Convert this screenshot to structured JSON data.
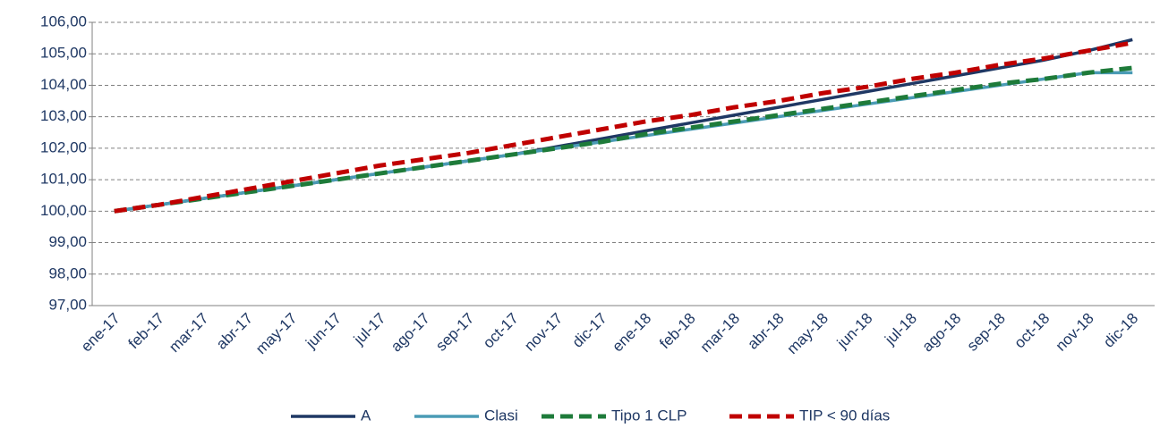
{
  "chart_data": {
    "type": "line",
    "categories": [
      "ene-17",
      "feb-17",
      "mar-17",
      "abr-17",
      "may-17",
      "jun-17",
      "jul-17",
      "ago-17",
      "sep-17",
      "oct-17",
      "nov-17",
      "dic-17",
      "ene-18",
      "feb-18",
      "mar-18",
      "abr-18",
      "may-18",
      "jun-18",
      "jul-18",
      "ago-18",
      "sep-18",
      "oct-18",
      "nov-18",
      "dic-18"
    ],
    "series": [
      {
        "name": "A",
        "color": "#1f3864",
        "dash": false,
        "values": [
          100,
          100.2,
          100.4,
          100.6,
          100.8,
          101.0,
          101.2,
          101.4,
          101.6,
          101.8,
          102.05,
          102.3,
          102.55,
          102.8,
          103.05,
          103.3,
          103.55,
          103.8,
          104.05,
          104.3,
          104.55,
          104.8,
          105.1,
          105.45
        ]
      },
      {
        "name": "Clasi",
        "color": "#4a9bb5",
        "dash": false,
        "values": [
          100,
          100.2,
          100.4,
          100.6,
          100.8,
          101.0,
          101.2,
          101.4,
          101.6,
          101.8,
          102.0,
          102.2,
          102.4,
          102.6,
          102.8,
          103.0,
          103.2,
          103.4,
          103.6,
          103.8,
          104.0,
          104.2,
          104.4,
          104.4
        ]
      },
      {
        "name": "Tipo 1 CLP",
        "color": "#1e7b3a",
        "dash": true,
        "values": [
          100,
          100.2,
          100.4,
          100.6,
          100.8,
          101.0,
          101.2,
          101.4,
          101.6,
          101.8,
          102.0,
          102.2,
          102.45,
          102.65,
          102.85,
          103.05,
          103.25,
          103.45,
          103.65,
          103.85,
          104.05,
          104.2,
          104.4,
          104.55
        ]
      },
      {
        "name": "TIP < 90 días",
        "color": "#c00000",
        "dash": true,
        "values": [
          100,
          100.2,
          100.45,
          100.7,
          100.95,
          101.2,
          101.45,
          101.65,
          101.85,
          102.1,
          102.35,
          102.6,
          102.85,
          103.05,
          103.3,
          103.5,
          103.75,
          103.95,
          104.2,
          104.4,
          104.65,
          104.85,
          105.1,
          105.35
        ]
      }
    ],
    "ylim": [
      97,
      106
    ],
    "yticks": [
      {
        "value": 97,
        "label": "97,00"
      },
      {
        "value": 98,
        "label": "98,00"
      },
      {
        "value": 99,
        "label": "99,00"
      },
      {
        "value": 100,
        "label": "100,00"
      },
      {
        "value": 101,
        "label": "101,00"
      },
      {
        "value": 102,
        "label": "102,00"
      },
      {
        "value": 103,
        "label": "103,00"
      },
      {
        "value": 104,
        "label": "104,00"
      },
      {
        "value": 105,
        "label": "105,00"
      },
      {
        "value": 106,
        "label": "106,00"
      }
    ],
    "grid": true,
    "legend": "bottom"
  }
}
